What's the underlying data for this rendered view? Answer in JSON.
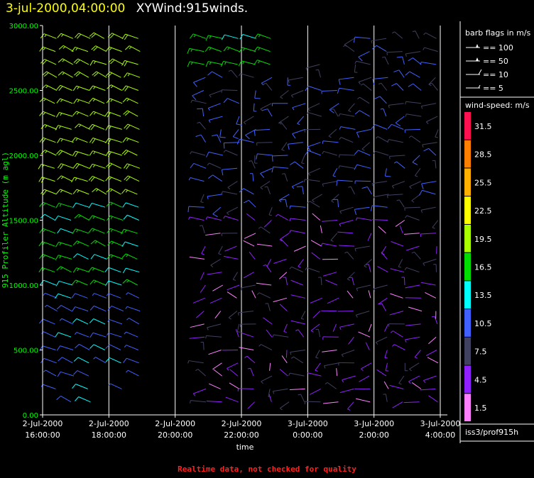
{
  "header": {
    "date": "3-jul-2000,04:00:00",
    "product": "XYWind:915winds."
  },
  "footer_note": "Realtime data, not checked for quality",
  "station_label": "iss3/prof915h",
  "barb_legend": {
    "title": "barb flags in m/s",
    "items": [
      {
        "label": "== 100",
        "speed": 100
      },
      {
        "label": "== 50",
        "speed": 50
      },
      {
        "label": "== 10",
        "speed": 10
      },
      {
        "label": "== 5",
        "speed": 5
      }
    ]
  },
  "colorbar": {
    "title": "wind-speed: m/s",
    "bins": [
      {
        "label": "31.5",
        "color": "#ff1050"
      },
      {
        "label": "28.5",
        "color": "#ff7f00"
      },
      {
        "label": "25.5",
        "color": "#ffb000"
      },
      {
        "label": "22.5",
        "color": "#ffff00"
      },
      {
        "label": "19.5",
        "color": "#aaff00"
      },
      {
        "label": "16.5",
        "color": "#00dd00"
      },
      {
        "label": "13.5",
        "color": "#00ffff"
      },
      {
        "label": "10.5",
        "color": "#4060ff"
      },
      {
        "label": "7.5",
        "color": "#404060"
      },
      {
        "label": "4.5",
        "color": "#9020ff"
      },
      {
        "label": "1.5",
        "color": "#ff80ff"
      }
    ]
  },
  "chart_data": {
    "type": "wind-barb",
    "ylabel": "915 Profiler Altitude (m agl)",
    "xlabel": "time",
    "ylim": [
      0,
      3000
    ],
    "xlim_hours": [
      -8,
      4
    ],
    "yticks": [
      "0.00",
      "500.00",
      "1000.00",
      "1500.00",
      "2000.00",
      "2500.00",
      "3000.00"
    ],
    "ytick_values": [
      0,
      500,
      1000,
      1500,
      2000,
      2500,
      3000
    ],
    "xticks": [
      {
        "top": "2-Jul-2000",
        "bottom": "16:00:00",
        "hour": -8
      },
      {
        "top": "2-Jul-2000",
        "bottom": "18:00:00",
        "hour": -6
      },
      {
        "top": "2-Jul-2000",
        "bottom": "20:00:00",
        "hour": -4
      },
      {
        "top": "2-Jul-2000",
        "bottom": "22:00:00",
        "hour": -2
      },
      {
        "top": "3-Jul-2000",
        "bottom": "0:00:00",
        "hour": 0
      },
      {
        "top": "3-Jul-2000",
        "bottom": "2:00:00",
        "hour": 2
      },
      {
        "top": "3-Jul-2000",
        "bottom": "4:00:00",
        "hour": 4
      }
    ],
    "grid": "vertical",
    "profile_hours": [
      -7.6,
      -7.1,
      -6.6,
      -6.1,
      -5.6,
      -5.1,
      -3.6,
      -3.1,
      -2.6,
      -2.1,
      -1.6,
      -1.1,
      -0.6,
      -0.1,
      0.4,
      0.9,
      1.4,
      1.9,
      2.4,
      2.9,
      3.4,
      3.9
    ],
    "note": "barbs colored by wind speed; ~20 m/s north-westerly aloft before 20:00, weak variable flow (3-10 m/s) later and near ground"
  }
}
